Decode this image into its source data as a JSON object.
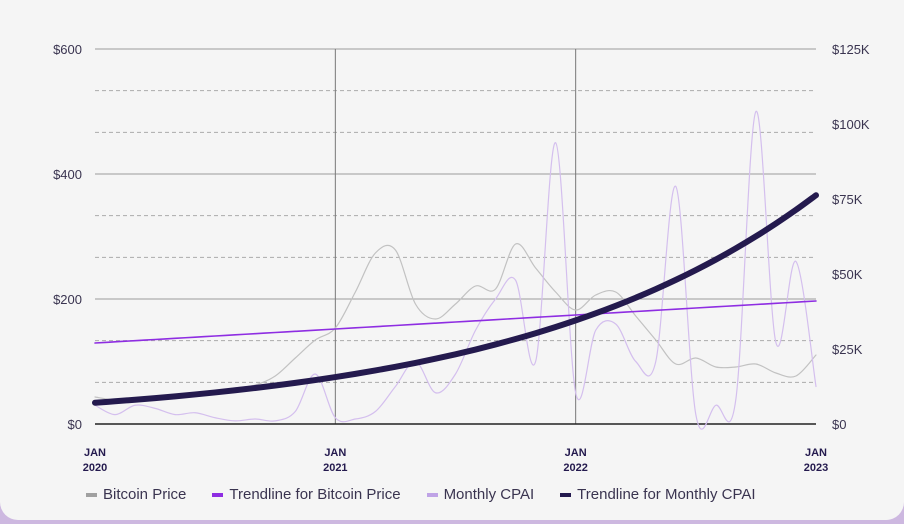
{
  "chart_data": {
    "type": "line",
    "x": [
      "2020-01",
      "2020-02",
      "2020-03",
      "2020-04",
      "2020-05",
      "2020-06",
      "2020-07",
      "2020-08",
      "2020-09",
      "2020-10",
      "2020-11",
      "2020-12",
      "2021-01",
      "2021-02",
      "2021-03",
      "2021-04",
      "2021-05",
      "2021-06",
      "2021-07",
      "2021-08",
      "2021-09",
      "2021-10",
      "2021-11",
      "2021-12",
      "2022-01",
      "2022-02",
      "2022-03",
      "2022-04",
      "2022-05",
      "2022-06",
      "2022-07",
      "2022-08",
      "2022-09",
      "2022-10",
      "2022-11",
      "2022-12",
      "2023-01"
    ],
    "x_tick_labels": [
      {
        "line1": "JAN",
        "line2": "2020",
        "index": 0
      },
      {
        "line1": "JAN",
        "line2": "2021",
        "index": 12
      },
      {
        "line1": "JAN",
        "line2": "2022",
        "index": 24
      },
      {
        "line1": "JAN",
        "line2": "2023",
        "index": 36
      }
    ],
    "y_left": {
      "ticks": [
        "$0",
        "$200",
        "$400",
        "$600"
      ],
      "range": [
        0,
        600
      ]
    },
    "y_right": {
      "ticks": [
        "$0",
        "$25K",
        "$50K",
        "$75K",
        "$100K",
        "$125K"
      ],
      "range": [
        0,
        125
      ]
    },
    "grid": true,
    "legend_placement": "bottom",
    "series": [
      {
        "name": "Bitcoin Price",
        "axis": "right",
        "unit": "$K",
        "color": "#c2c2c2",
        "values": [
          9,
          8,
          8,
          9,
          9,
          10,
          11,
          12,
          13,
          16,
          22,
          28,
          32,
          44,
          57,
          58,
          40,
          35,
          40,
          46,
          45,
          60,
          52,
          44,
          38,
          43,
          44,
          36,
          28,
          20,
          22,
          19,
          19,
          20,
          17,
          16,
          23
        ]
      },
      {
        "name": "Trendline for Bitcoin Price",
        "axis": "right",
        "unit": "$K",
        "color": "#8e2de2",
        "kind": "linear",
        "start": 27,
        "end": 41
      },
      {
        "name": "Monthly CPAI",
        "axis": "left",
        "unit": "$",
        "color": "#d4bfee",
        "values": [
          30,
          15,
          30,
          25,
          15,
          18,
          10,
          5,
          8,
          5,
          20,
          80,
          10,
          8,
          20,
          60,
          100,
          50,
          80,
          150,
          200,
          230,
          100,
          450,
          50,
          150,
          160,
          100,
          100,
          380,
          15,
          30,
          40,
          500,
          130,
          260,
          60
        ]
      },
      {
        "name": "Trendline for Monthly CPAI",
        "axis": "left",
        "unit": "$",
        "color": "#241a4e",
        "kind": "exponential",
        "start": 34,
        "end": 366
      }
    ]
  }
}
